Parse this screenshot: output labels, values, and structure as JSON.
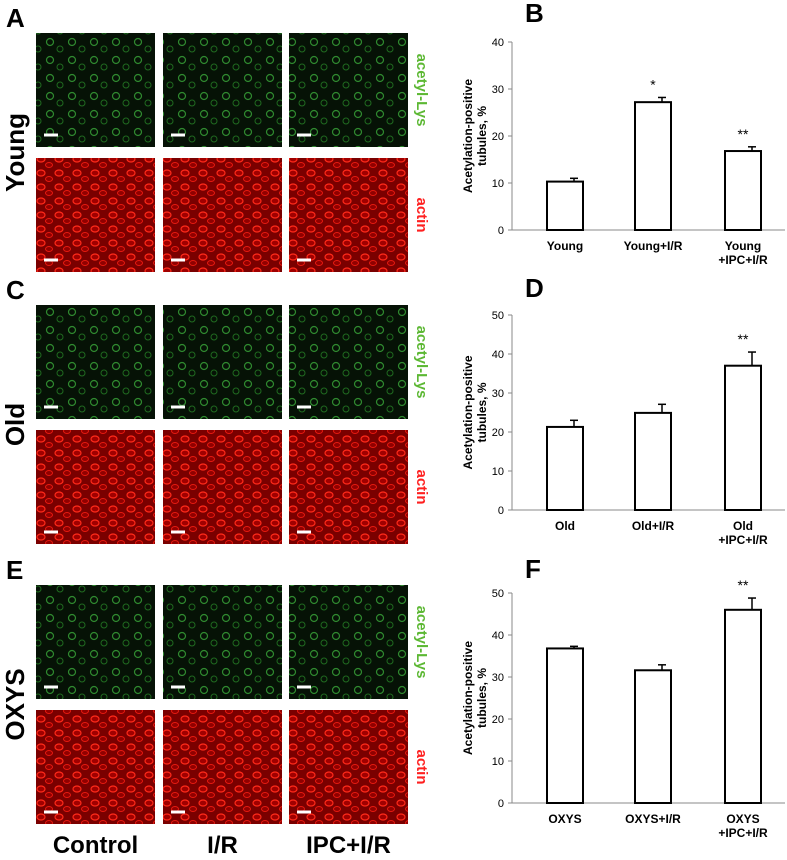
{
  "panel_labels": [
    "A",
    "B",
    "C",
    "D",
    "E",
    "F"
  ],
  "rows": [
    "Young",
    "Old",
    "OXYS"
  ],
  "columns": [
    "Control",
    "I/R",
    "IPC+I/R"
  ],
  "stains": [
    "acetyl-Lys",
    "actin"
  ],
  "chart_data": [
    {
      "type": "bar",
      "ylabel": "Acetylation-positive\ntubules, %",
      "categories": [
        "Young",
        "Young+I/R",
        "Young\n+IPC+I/R"
      ],
      "values": [
        10.3,
        27.2,
        16.8
      ],
      "errors": [
        0.7,
        1.0,
        0.9
      ],
      "significance": [
        null,
        "*",
        "**"
      ],
      "color": "#ffffff",
      "ylim": [
        0,
        40
      ],
      "yticks": [
        0,
        10,
        20,
        30,
        40
      ]
    },
    {
      "type": "bar",
      "ylabel": "Acetylation-positive\ntubules, %",
      "categories": [
        "Old",
        "Old+I/R",
        "Old\n+IPC+I/R"
      ],
      "values": [
        21.3,
        24.9,
        37.0
      ],
      "errors": [
        1.7,
        2.2,
        3.5
      ],
      "significance": [
        null,
        null,
        "**"
      ],
      "color": "#ffffff",
      "ylim": [
        0,
        50
      ],
      "yticks": [
        0,
        10,
        20,
        30,
        40,
        50
      ]
    },
    {
      "type": "bar",
      "ylabel": "Acetylation-positive\ntubules, %",
      "categories": [
        "OXYS",
        "OXYS+I/R",
        "OXYS\n+IPC+I/R"
      ],
      "values": [
        36.8,
        31.6,
        46.0
      ],
      "errors": [
        0.5,
        1.3,
        2.8
      ],
      "significance": [
        null,
        null,
        "**"
      ],
      "color": "#ffffff",
      "ylim": [
        0,
        50
      ],
      "yticks": [
        0,
        10,
        20,
        30,
        40,
        50
      ]
    }
  ]
}
